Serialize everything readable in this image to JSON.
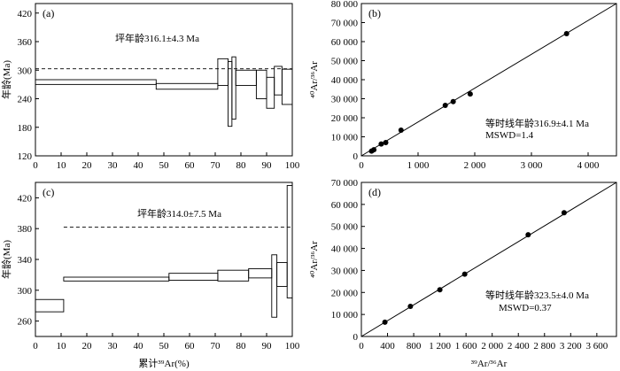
{
  "chart_data": [
    {
      "type": "bar",
      "panel_label": "(a)",
      "ylabel": "年龄(Ma)",
      "xlabel": "",
      "xlim": [
        0,
        100
      ],
      "ylim": [
        120,
        440
      ],
      "xticks": [
        0,
        10,
        20,
        30,
        40,
        50,
        60,
        70,
        80,
        90,
        100
      ],
      "yticks": [
        120,
        180,
        240,
        300,
        360,
        420
      ],
      "plateau_age": 303,
      "annotation": "坪年龄316.1±4.3 Ma",
      "steps": [
        {
          "x0": 0,
          "x1": 47,
          "low": 270,
          "high": 280
        },
        {
          "x0": 47,
          "x1": 71,
          "low": 260,
          "high": 272
        },
        {
          "x0": 71,
          "x1": 75,
          "low": 268,
          "high": 324
        },
        {
          "x0": 75,
          "x1": 76.5,
          "low": 182,
          "high": 318
        },
        {
          "x0": 76.5,
          "x1": 78,
          "low": 197,
          "high": 328
        },
        {
          "x0": 78,
          "x1": 86,
          "low": 268,
          "high": 300
        },
        {
          "x0": 86,
          "x1": 90,
          "low": 240,
          "high": 300
        },
        {
          "x0": 90,
          "x1": 93,
          "low": 220,
          "high": 285
        },
        {
          "x0": 93,
          "x1": 96,
          "low": 248,
          "high": 308
        },
        {
          "x0": 96,
          "x1": 100,
          "low": 228,
          "high": 302
        }
      ]
    },
    {
      "type": "scatter",
      "panel_label": "(b)",
      "ylabel": "⁴⁰Ar/³⁶Ar",
      "xlabel": "",
      "xlim": [
        0,
        4500
      ],
      "ylim": [
        0,
        80000
      ],
      "xticks": [
        0,
        1000,
        2000,
        3000,
        4000
      ],
      "xtick_labels": [
        "0",
        "1 000",
        "2 000",
        "3 000",
        "4 000"
      ],
      "yticks": [
        0,
        10000,
        20000,
        30000,
        40000,
        50000,
        60000,
        70000,
        80000
      ],
      "ytick_labels": [
        "0",
        "10 000",
        "20 000",
        "30 000",
        "40 000",
        "50 000",
        "60 000",
        "70 000",
        "80 000"
      ],
      "annotation": [
        "等时线年龄316.9±4.1 Ma",
        "MSWD=1.4"
      ],
      "points": [
        {
          "x": 180,
          "y": 2500
        },
        {
          "x": 220,
          "y": 3200
        },
        {
          "x": 350,
          "y": 6200
        },
        {
          "x": 430,
          "y": 7000
        },
        {
          "x": 700,
          "y": 13500
        },
        {
          "x": 1480,
          "y": 26500
        },
        {
          "x": 1620,
          "y": 28500
        },
        {
          "x": 1920,
          "y": 32500
        },
        {
          "x": 3620,
          "y": 64200
        }
      ],
      "fit_line": [
        {
          "x": 0,
          "y": 0
        },
        {
          "x": 4500,
          "y": 80000
        }
      ]
    },
    {
      "type": "bar",
      "panel_label": "(c)",
      "ylabel": "年龄(Ma)",
      "xlabel": "累计³⁹Ar(%)",
      "xlim": [
        0,
        100
      ],
      "ylim": [
        240,
        440
      ],
      "xticks": [
        0,
        10,
        20,
        30,
        40,
        50,
        60,
        70,
        80,
        90,
        100
      ],
      "yticks": [
        260,
        300,
        340,
        380,
        420
      ],
      "plateau_age": 382,
      "annotation": "坪年龄314.0±7.5 Ma",
      "steps": [
        {
          "x0": 0,
          "x1": 11,
          "low": 272,
          "high": 288
        },
        {
          "x0": 11,
          "x1": 52,
          "low": 312,
          "high": 317
        },
        {
          "x0": 52,
          "x1": 71,
          "low": 313,
          "high": 322
        },
        {
          "x0": 71,
          "x1": 83,
          "low": 312,
          "high": 326
        },
        {
          "x0": 83,
          "x1": 92,
          "low": 316,
          "high": 328
        },
        {
          "x0": 92,
          "x1": 94,
          "low": 265,
          "high": 346
        },
        {
          "x0": 94,
          "x1": 98,
          "low": 305,
          "high": 336
        },
        {
          "x0": 98,
          "x1": 100,
          "low": 290,
          "high": 436
        }
      ]
    },
    {
      "type": "scatter",
      "panel_label": "(d)",
      "ylabel": "⁴⁰Ar/³⁶Ar",
      "xlabel": "³⁹Ar/³⁶Ar",
      "xlim": [
        0,
        3900
      ],
      "ylim": [
        0,
        70000
      ],
      "xticks": [
        0,
        400,
        800,
        1200,
        1600,
        2000,
        2400,
        2800,
        3200,
        3600
      ],
      "xtick_labels": [
        "0",
        "400",
        "800",
        "1 200",
        "1 600",
        "2 000",
        "2 400",
        "2 800",
        "3 200",
        "3 600"
      ],
      "yticks": [
        0,
        10000,
        20000,
        30000,
        40000,
        50000,
        60000,
        70000
      ],
      "ytick_labels": [
        "0",
        "10 000",
        "20 000",
        "30 000",
        "40 000",
        "50 000",
        "60 000",
        "70 000"
      ],
      "annotation": [
        "等时线年龄323.5±4.0 Ma",
        "MSWD=0.37"
      ],
      "points": [
        {
          "x": 360,
          "y": 6500
        },
        {
          "x": 750,
          "y": 13700
        },
        {
          "x": 1200,
          "y": 21200
        },
        {
          "x": 1580,
          "y": 28300
        },
        {
          "x": 2550,
          "y": 46200
        },
        {
          "x": 3100,
          "y": 56200
        }
      ],
      "fit_line": [
        {
          "x": 0,
          "y": 0
        },
        {
          "x": 3900,
          "y": 70000
        }
      ]
    }
  ]
}
